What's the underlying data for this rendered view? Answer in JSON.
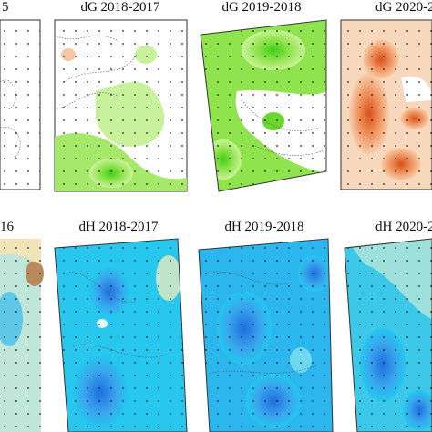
{
  "panels": [
    {
      "title": "5"
    },
    {
      "title": "dG 2018-2017"
    },
    {
      "title": "dG 2019-2018"
    },
    {
      "title": "dG 2020-2"
    },
    {
      "title": "16"
    },
    {
      "title": "dH 2018-2017"
    },
    {
      "title": "dH 2019-2018"
    },
    {
      "title": "dH 2020-2"
    }
  ]
}
